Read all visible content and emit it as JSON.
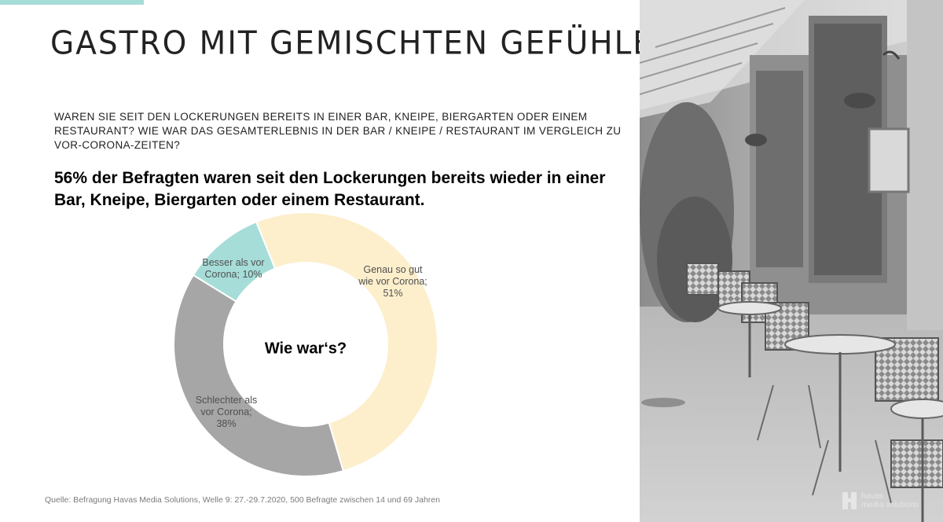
{
  "slide": {
    "title": "GASTRO MIT GEMISCHTEN GEFÜHLEN",
    "question": "WAREN SIE SEIT DEN LOCKERUNGEN BEREITS IN EINER BAR, KNEIPE, BIERGARTEN ODER EINEM RESTAURANT? WIE WAR DAS GESAMTERLEBNIS IN DER BAR / KNEIPE / RESTAURANT IM VERGLEICH ZU VOR-CORONA-ZEITEN?",
    "headline": "56% der Befragten waren seit den Lockerungen bereits wieder in einer Bar, Kneipe, Biergarten oder einem Restaurant.",
    "source": "Quelle: Befragung Havas Media Solutions, Welle 9: 27.-29.7.2020, 500 Befragte zwischen 14 und 69 Jahren",
    "logo": {
      "line1": "havas",
      "line2": "media solutions"
    }
  },
  "colors": {
    "accent": "#a6ddd8",
    "slice_better": "#a6ddd8",
    "slice_same": "#fdefcc",
    "slice_worse": "#a6a6a6"
  },
  "chart_data": {
    "type": "pie",
    "variant": "donut",
    "center_label": "Wie war‘s?",
    "slices": [
      {
        "name": "Genau so gut wie vor Corona",
        "value": 51,
        "label_lines": [
          "Genau so gut",
          "wie vor Corona;",
          "51%"
        ],
        "color": "#fdefcc"
      },
      {
        "name": "Schlechter als vor Corona",
        "value": 38,
        "label_lines": [
          "Schlechter als",
          "vor Corona;",
          "38%"
        ],
        "color": "#a6a6a6"
      },
      {
        "name": "Besser als vor Corona",
        "value": 10,
        "label_lines": [
          "Besser als vor",
          "Corona; 10%"
        ],
        "color": "#a6ddd8"
      }
    ]
  }
}
